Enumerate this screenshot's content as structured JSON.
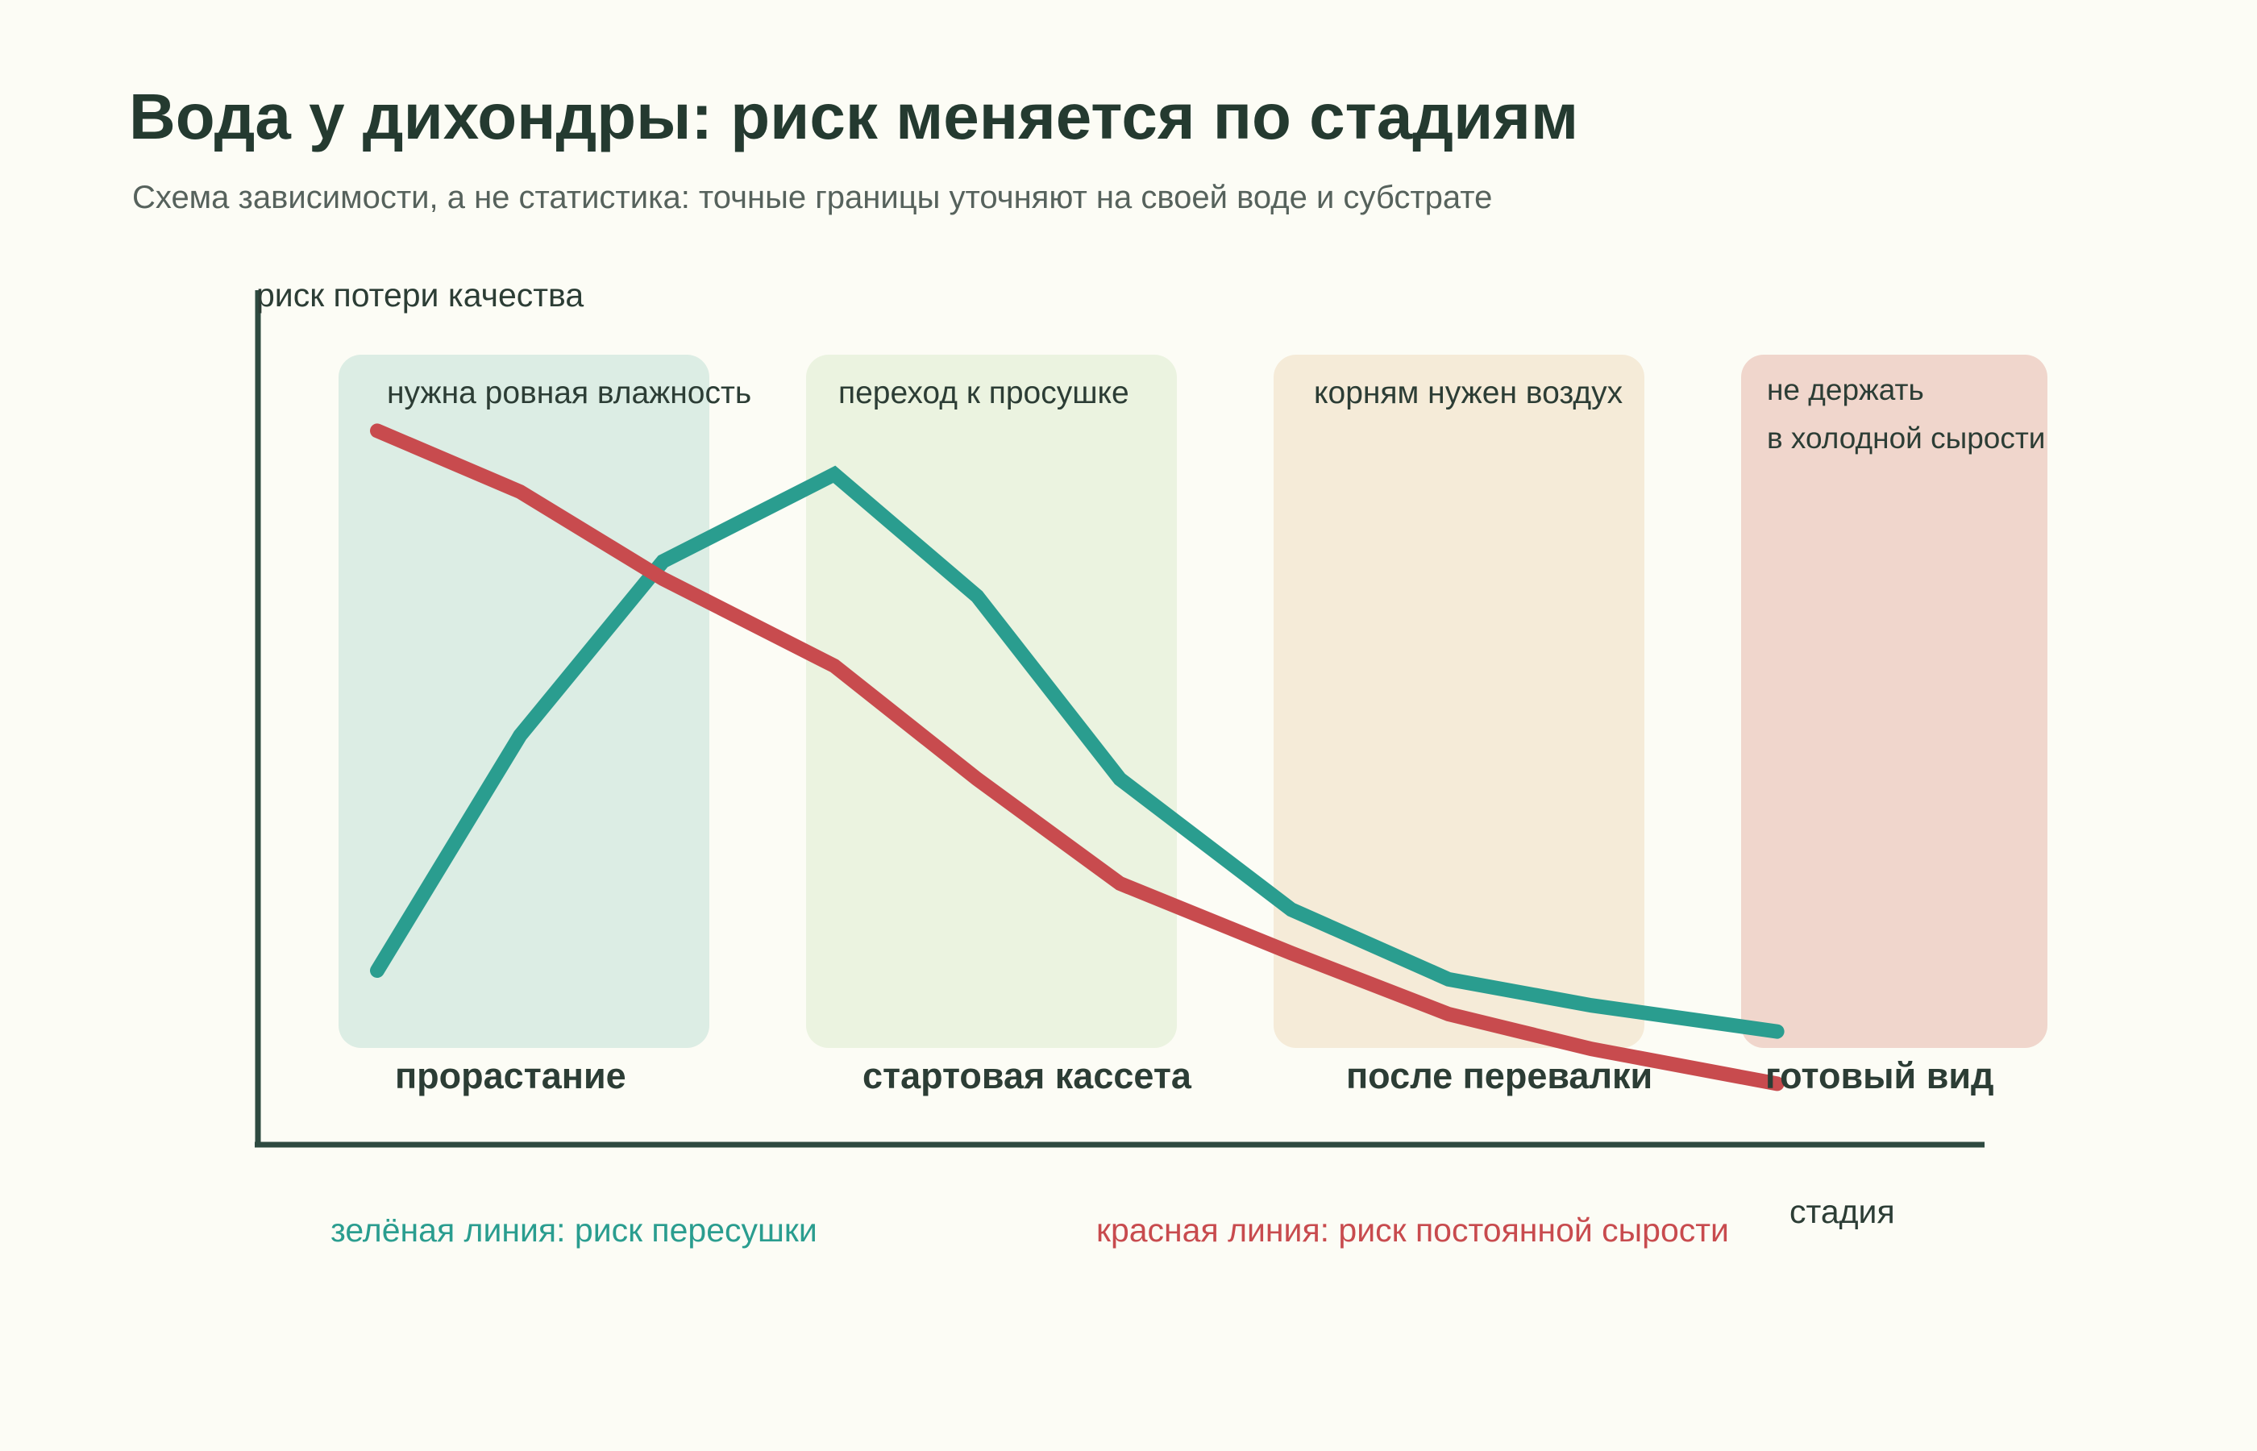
{
  "title": "Вода у дихондры: риск меняется по стадиям",
  "subtitle": "Схема зависимости, а не статистика: точные границы уточняют на своей воде и субстрате",
  "chart_data": {
    "type": "line",
    "title": "Вода у дихондры: риск меняется по стадиям",
    "subtitle": "Схема зависимости, а не статистика: точные границы уточняют на своей воде и субстрате",
    "xlabel": "стадия",
    "ylabel": "риск потери качества",
    "ylim": [
      0,
      100
    ],
    "x_range": [
      0,
      10
    ],
    "grid": false,
    "stages": [
      {
        "label": "прорастание",
        "note": [
          "нужна ровная влажность"
        ],
        "color": "#dcede4"
      },
      {
        "label": "стартовая кассета",
        "note": [
          "переход к просушке"
        ],
        "color": "#ebf3e0"
      },
      {
        "label": "после перевалки",
        "note": [
          "корням нужен воздух"
        ],
        "color": "#f5ebd8"
      },
      {
        "label": "готовый вид",
        "note": [
          "не держать",
          "в холодной сырости"
        ],
        "color": "#f0d6cc"
      }
    ],
    "x": [
      0,
      1,
      2,
      3.2,
      4.2,
      5.2,
      6.4,
      7.5,
      8.5,
      9.8
    ],
    "series": [
      {
        "name": "зелёная линия: риск пересушки",
        "color": "#2a9d8f",
        "values": [
          20,
          47,
          67,
          77,
          63,
          42,
          27,
          19,
          16,
          13
        ]
      },
      {
        "name": "красная линия: риск постоянной сырости",
        "color": "#c84b4e",
        "values": [
          82,
          75,
          65,
          55,
          42,
          30,
          22,
          15,
          11,
          7
        ]
      }
    ],
    "legend": [
      {
        "text": "зелёная линия: риск пересушки",
        "color": "#2a9d8f"
      },
      {
        "text": "красная линия: риск постоянной сырости",
        "color": "#c84b4e"
      }
    ],
    "legend_position": "bottom"
  }
}
